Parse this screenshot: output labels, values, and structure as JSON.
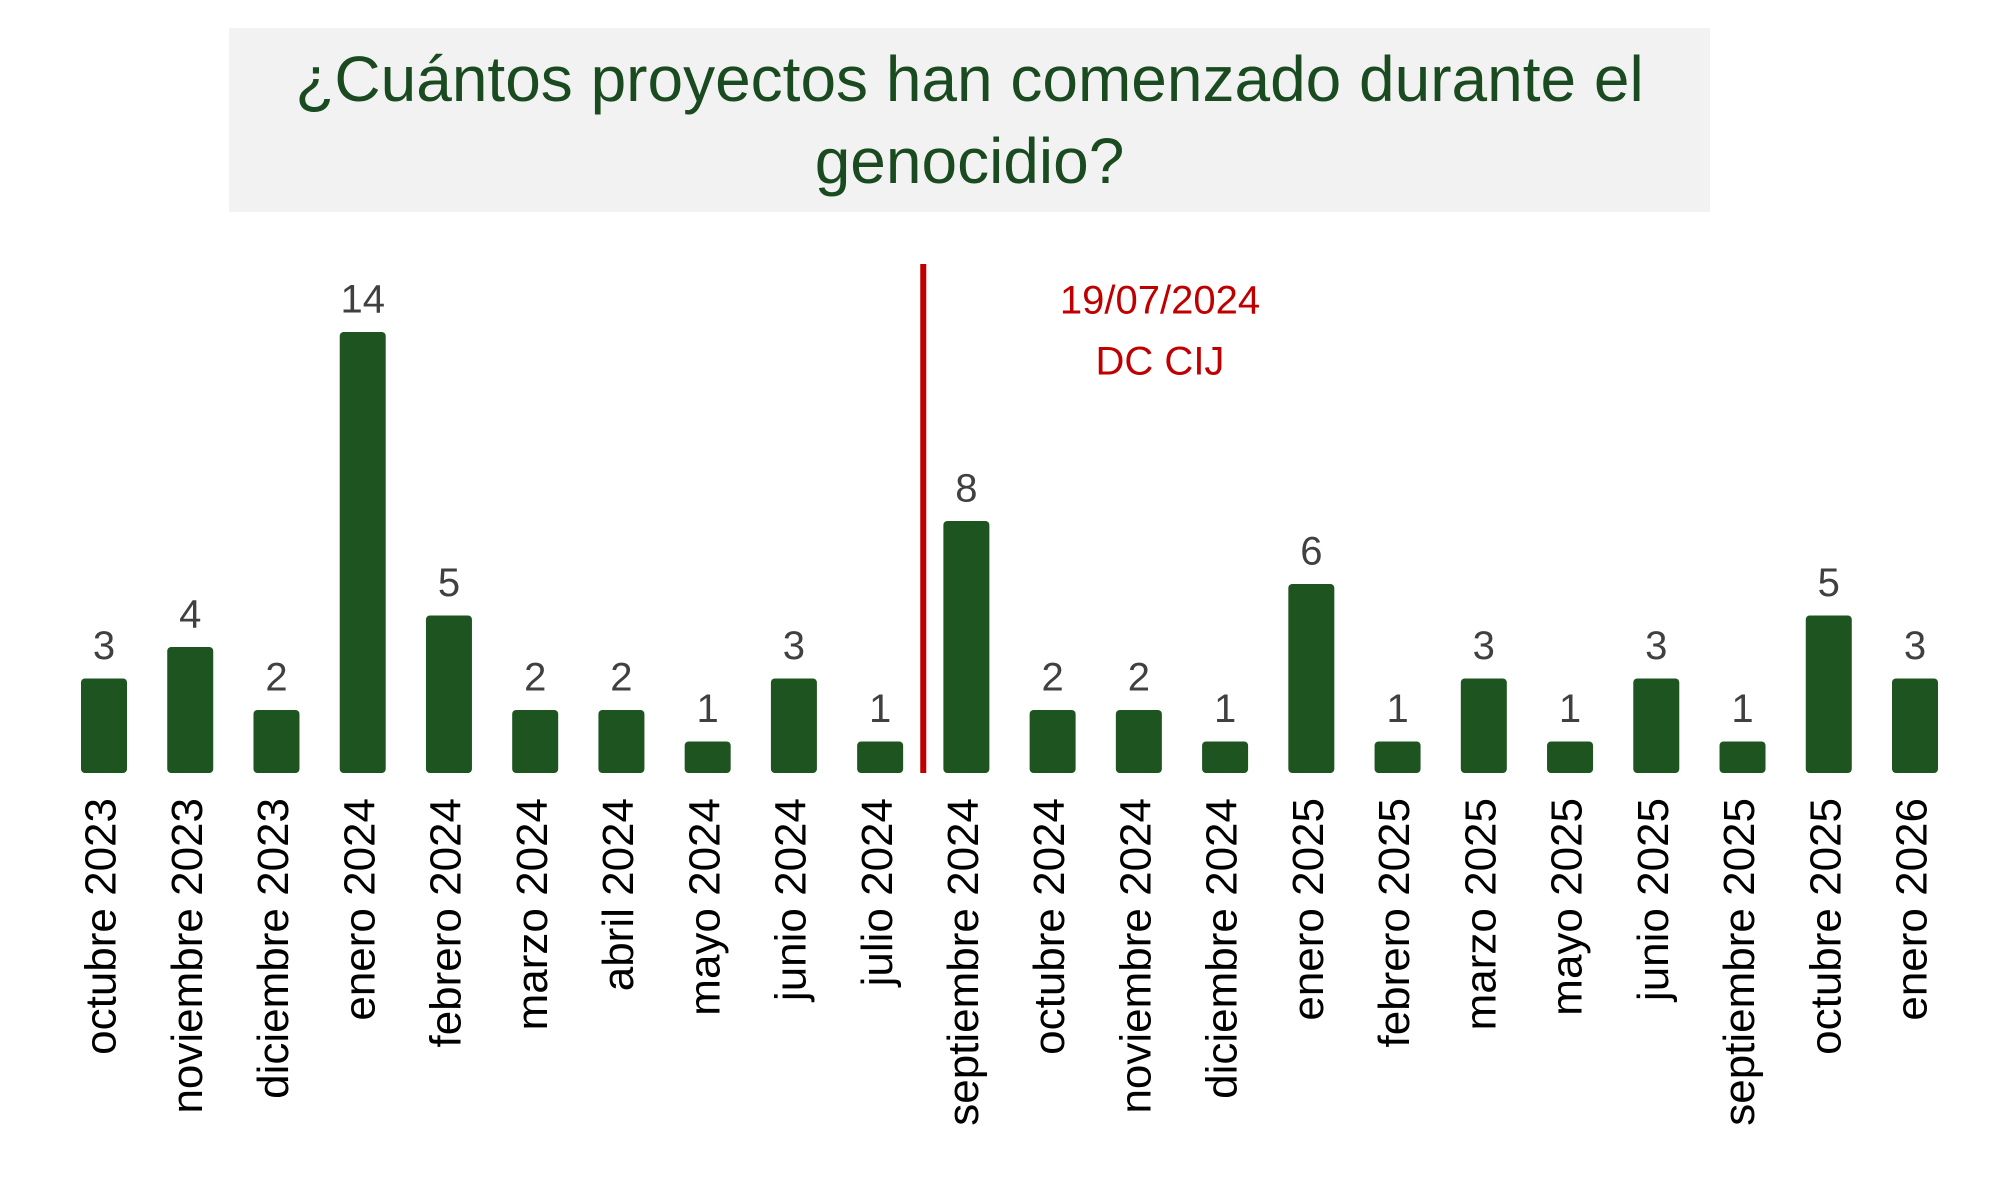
{
  "chart_data": {
    "type": "bar",
    "title": "¿Cuántos proyectos han comenzado durante el genocidio?",
    "categories": [
      "octubre 2023",
      "noviembre 2023",
      "diciembre 2023",
      "enero 2024",
      "febrero 2024",
      "marzo 2024",
      "abril 2024",
      "mayo 2024",
      "junio 2024",
      "julio 2024",
      "septiembre 2024",
      "octubre 2024",
      "noviembre 2024",
      "diciembre 2024",
      "enero 2025",
      "febrero 2025",
      "marzo 2025",
      "mayo 2025",
      "junio 2025",
      "septiembre 2025",
      "octubre 2025",
      "enero 2026"
    ],
    "values": [
      3,
      4,
      2,
      14,
      5,
      2,
      2,
      1,
      3,
      1,
      8,
      2,
      2,
      1,
      6,
      1,
      3,
      1,
      3,
      1,
      5,
      3
    ],
    "color": "#1e5420",
    "annotation": {
      "lines": [
        "19/07/2024",
        "DC CIJ"
      ],
      "color": "#c00000"
    }
  }
}
